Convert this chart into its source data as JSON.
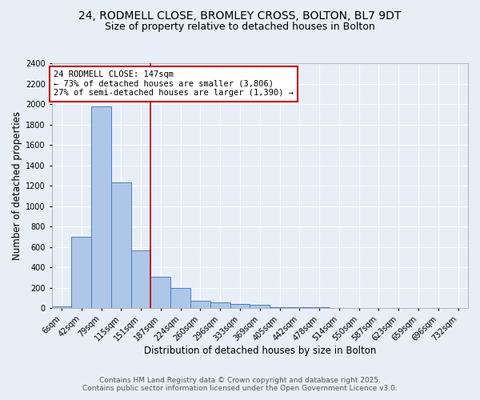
{
  "title_line1": "24, RODMELL CLOSE, BROMLEY CROSS, BOLTON, BL7 9DT",
  "title_line2": "Size of property relative to detached houses in Bolton",
  "xlabel": "Distribution of detached houses by size in Bolton",
  "ylabel": "Number of detached properties",
  "bar_labels": [
    "6sqm",
    "42sqm",
    "79sqm",
    "115sqm",
    "151sqm",
    "187sqm",
    "224sqm",
    "260sqm",
    "296sqm",
    "333sqm",
    "369sqm",
    "405sqm",
    "442sqm",
    "478sqm",
    "514sqm",
    "550sqm",
    "587sqm",
    "623sqm",
    "659sqm",
    "696sqm",
    "732sqm"
  ],
  "bar_values": [
    15,
    700,
    1980,
    1230,
    570,
    305,
    200,
    75,
    55,
    38,
    35,
    10,
    10,
    10,
    5,
    5,
    2,
    2,
    2,
    2,
    2
  ],
  "bar_color": "#aec6e8",
  "bar_edge_color": "#4d7dbb",
  "bg_color": "#e8eef8",
  "grid_color": "#ffffff",
  "vline_x_idx": 4,
  "vline_color": "#cc0000",
  "annotation_text": "24 RODMELL CLOSE: 147sqm\n← 73% of detached houses are smaller (3,806)\n27% of semi-detached houses are larger (1,390) →",
  "annotation_box_color": "#cc0000",
  "ylim": [
    0,
    2400
  ],
  "yticks": [
    0,
    200,
    400,
    600,
    800,
    1000,
    1200,
    1400,
    1600,
    1800,
    2000,
    2200,
    2400
  ],
  "footer_line1": "Contains HM Land Registry data © Crown copyright and database right 2025.",
  "footer_line2": "Contains public sector information licensed under the Open Government Licence v3.0.",
  "title_fontsize": 10,
  "subtitle_fontsize": 9,
  "axis_label_fontsize": 8.5,
  "tick_fontsize": 7,
  "annotation_fontsize": 7.5,
  "footer_fontsize": 6.5
}
